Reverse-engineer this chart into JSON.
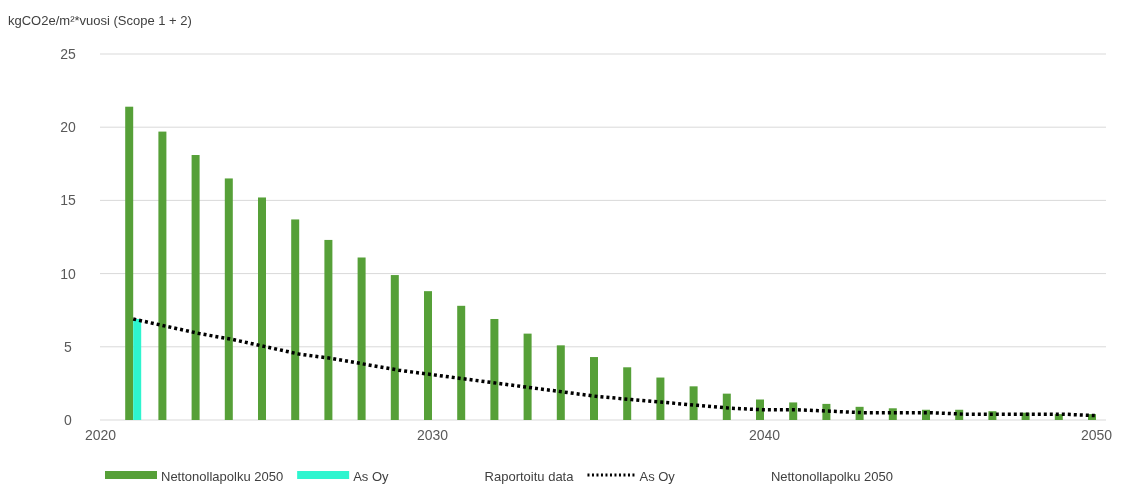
{
  "chart_data": {
    "type": "bar",
    "ylabel": "kgCO2e/m²*vuosi (Scope 1 + 2)",
    "x": [
      2021,
      2022,
      2023,
      2024,
      2025,
      2026,
      2027,
      2028,
      2029,
      2030,
      2031,
      2032,
      2033,
      2034,
      2035,
      2036,
      2037,
      2038,
      2039,
      2040,
      2041,
      2042,
      2043,
      2044,
      2045,
      2046,
      2047,
      2048,
      2049,
      2050
    ],
    "xlim": [
      2020,
      2050
    ],
    "xticks": [
      2020,
      2030,
      2040,
      2050
    ],
    "ylim": [
      0,
      25
    ],
    "yticks": [
      0,
      5,
      10,
      15,
      20,
      25
    ],
    "grid": "y",
    "legend": "bottom",
    "series": [
      {
        "name": "Nettonollapolku 2050",
        "color": "#56a038",
        "values": [
          21.4,
          19.7,
          18.1,
          16.5,
          15.2,
          13.7,
          12.3,
          11.1,
          9.9,
          8.8,
          7.8,
          6.9,
          5.9,
          5.1,
          4.3,
          3.6,
          2.9,
          2.3,
          1.8,
          1.4,
          1.2,
          1.1,
          0.9,
          0.8,
          0.7,
          0.7,
          0.6,
          0.5,
          0.4,
          0.4
        ]
      },
      {
        "name": "As Oy",
        "color": "#2ef5cf",
        "values": [
          6.9,
          null,
          null,
          null,
          null,
          null,
          null,
          null,
          null,
          null,
          null,
          null,
          null,
          null,
          null,
          null,
          null,
          null,
          null,
          null,
          null,
          null,
          null,
          null,
          null,
          null,
          null,
          null,
          null,
          null
        ]
      },
      {
        "name": "As Oy",
        "type": "line",
        "color": "#000000",
        "line_style": "dotted",
        "values": [
          6.9,
          6.4,
          5.9,
          5.5,
          5.0,
          4.5,
          4.2,
          3.8,
          3.4,
          3.1,
          2.8,
          2.5,
          2.2,
          1.9,
          1.6,
          1.4,
          1.2,
          1.0,
          0.8,
          0.7,
          0.7,
          0.6,
          0.5,
          0.5,
          0.5,
          0.4,
          0.4,
          0.4,
          0.4,
          0.3
        ]
      }
    ],
    "annotations": [
      "Raportoitu data",
      "Nettonollapolku 2050"
    ]
  }
}
